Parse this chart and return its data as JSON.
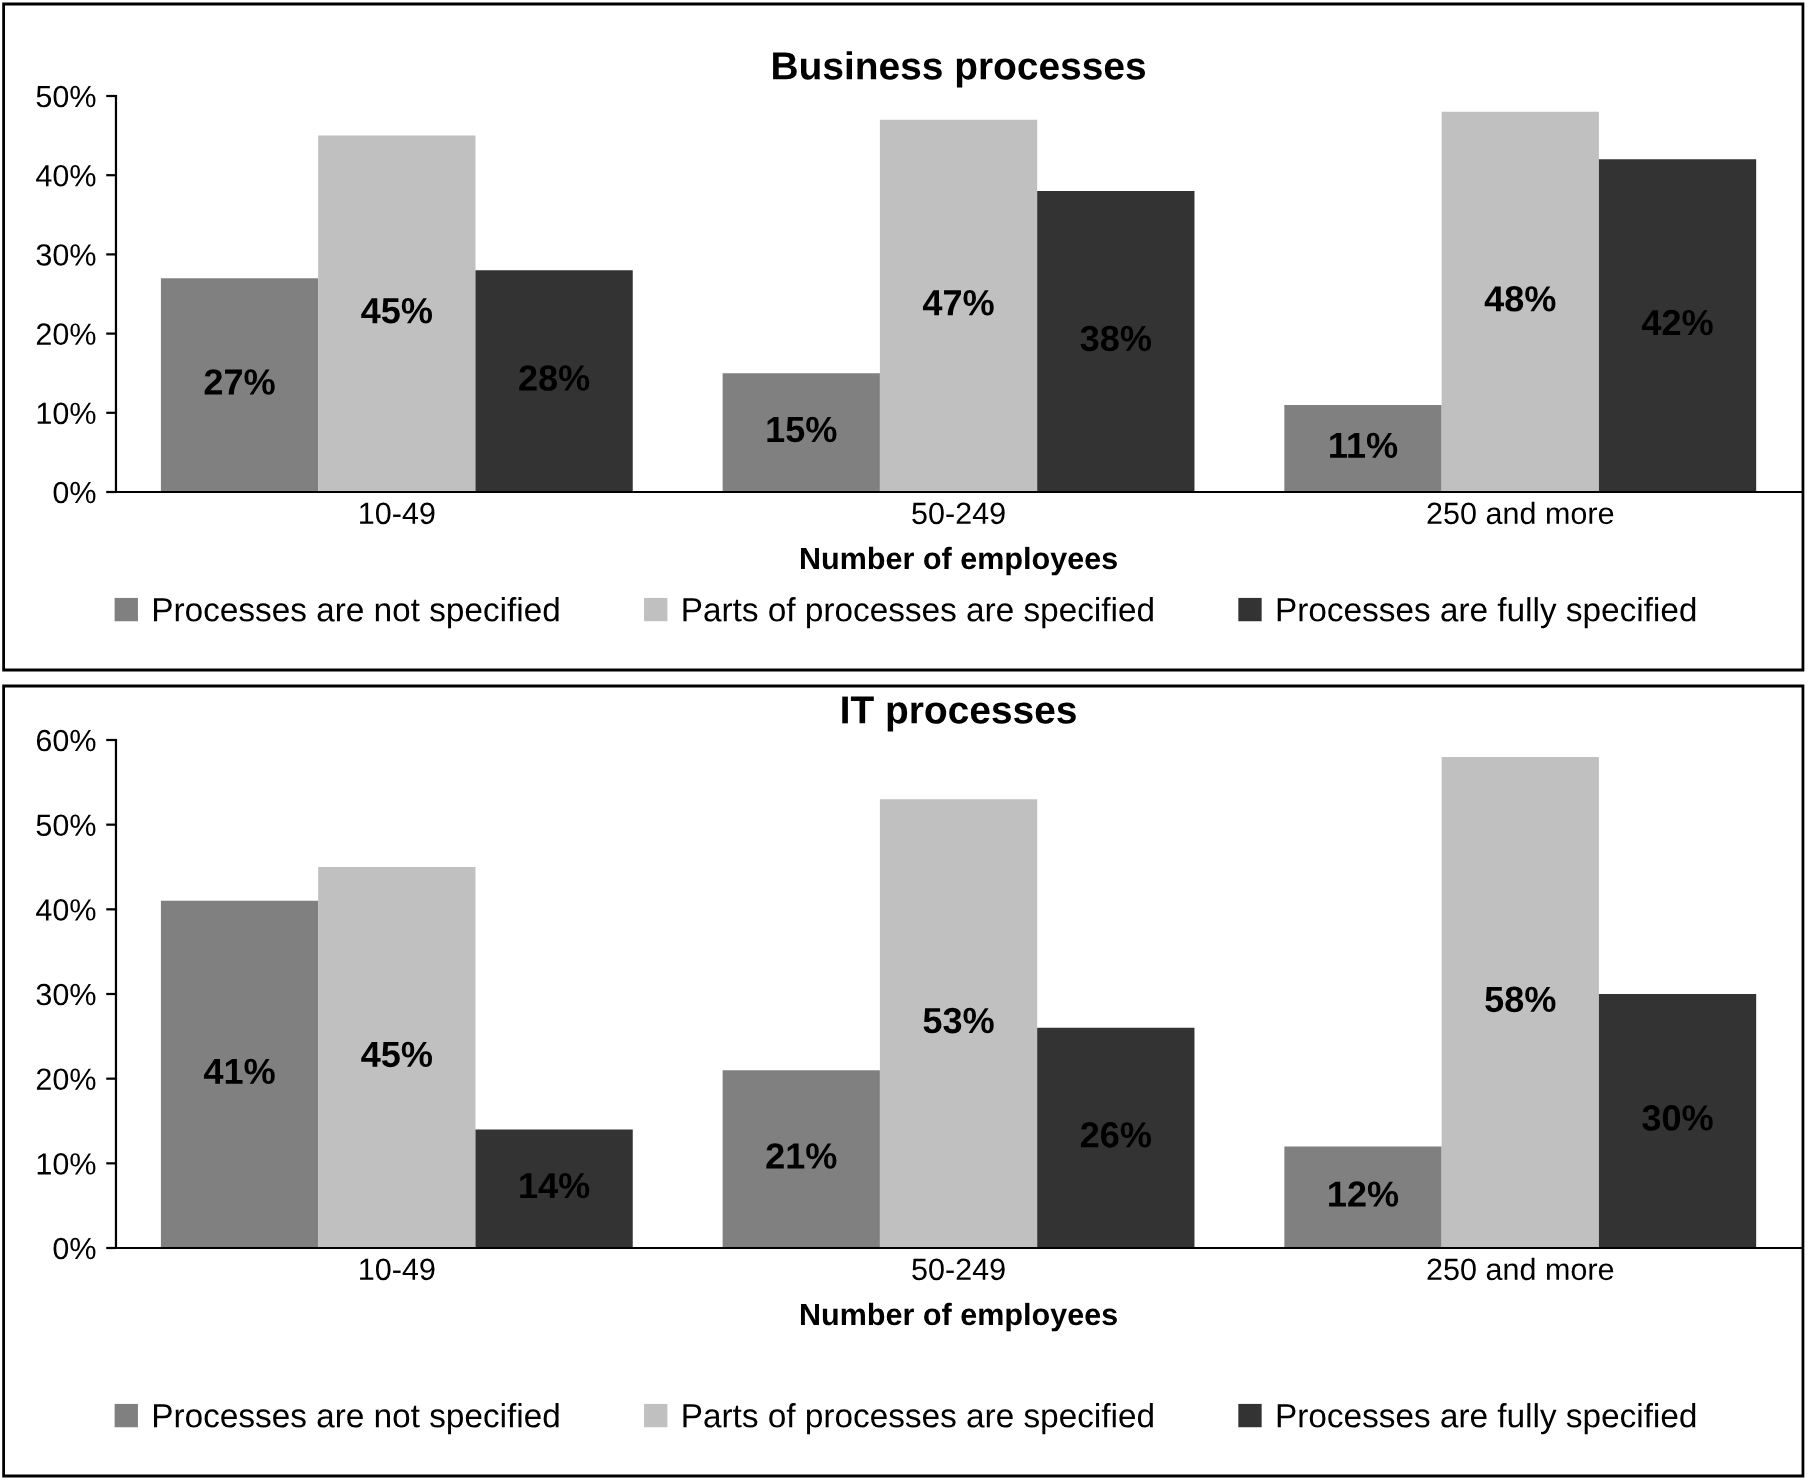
{
  "chart_data": [
    {
      "type": "bar",
      "title": "Business processes",
      "xlabel": "Number of employees",
      "categories": [
        "10-49",
        "50-249",
        "250 and more"
      ],
      "series": [
        {
          "name": "Processes are not specified",
          "color": "#808080",
          "values": [
            27,
            15,
            11
          ],
          "value_labels": [
            "27%",
            "15%",
            "11%"
          ]
        },
        {
          "name": "Parts of processes are specified",
          "color": "#c0c0c0",
          "values": [
            45,
            47,
            48
          ],
          "value_labels": [
            "45%",
            "47%",
            "48%"
          ]
        },
        {
          "name": "Processes are fully specified",
          "color": "#333333",
          "values": [
            28,
            38,
            42
          ],
          "value_labels": [
            "28%",
            "38%",
            "42%"
          ]
        }
      ],
      "ylim": [
        0,
        50
      ],
      "yticks": [
        {
          "value": 0,
          "label": "0%"
        },
        {
          "value": 10,
          "label": "10%"
        },
        {
          "value": 20,
          "label": "20%"
        },
        {
          "value": 30,
          "label": "30%"
        },
        {
          "value": 40,
          "label": "40%"
        },
        {
          "value": 50,
          "label": "50%"
        }
      ],
      "grid": false,
      "legend": "bottom"
    },
    {
      "type": "bar",
      "title": "IT processes",
      "xlabel": "Number of employees",
      "categories": [
        "10-49",
        "50-249",
        "250 and more"
      ],
      "series": [
        {
          "name": "Processes are not specified",
          "color": "#808080",
          "values": [
            41,
            21,
            12
          ],
          "value_labels": [
            "41%",
            "21%",
            "12%"
          ]
        },
        {
          "name": "Parts of processes are specified",
          "color": "#c0c0c0",
          "values": [
            45,
            53,
            58
          ],
          "value_labels": [
            "45%",
            "53%",
            "58%"
          ]
        },
        {
          "name": "Processes are fully specified",
          "color": "#333333",
          "values": [
            14,
            26,
            30
          ],
          "value_labels": [
            "14%",
            "26%",
            "30%"
          ]
        }
      ],
      "ylim": [
        0,
        60
      ],
      "yticks": [
        {
          "value": 0,
          "label": "0%"
        },
        {
          "value": 10,
          "label": "10%"
        },
        {
          "value": 20,
          "label": "20%"
        },
        {
          "value": 30,
          "label": "30%"
        },
        {
          "value": 40,
          "label": "40%"
        },
        {
          "value": 50,
          "label": "50%"
        },
        {
          "value": 60,
          "label": "60%"
        }
      ],
      "grid": false,
      "legend": "bottom"
    }
  ]
}
